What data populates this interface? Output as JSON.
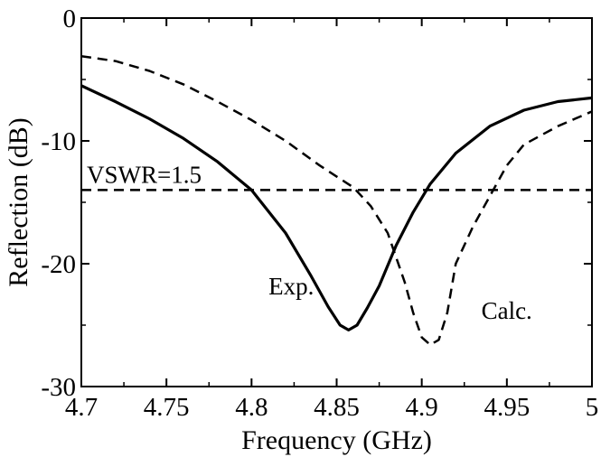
{
  "chart_data": {
    "type": "line",
    "title": "",
    "xlabel": "Frequency (GHz)",
    "ylabel": "Reflection (dB)",
    "xlim": [
      4.7,
      5.0
    ],
    "ylim": [
      -30,
      0
    ],
    "x_ticks": [
      "4.7",
      "4.75",
      "4.8",
      "4.85",
      "4.9",
      "4.95",
      "5"
    ],
    "y_ticks": [
      "0",
      "-10",
      "-20",
      "-30"
    ],
    "grid": false,
    "legend": "none",
    "series": [
      {
        "line": "solid",
        "x": [
          4.7,
          4.72,
          4.74,
          4.76,
          4.78,
          4.8,
          4.82,
          4.835,
          4.845,
          4.852,
          4.857,
          4.862,
          4.868,
          4.875,
          4.885,
          4.895,
          4.905,
          4.92,
          4.94,
          4.96,
          4.98,
          5.0
        ],
        "y": [
          -5.5,
          -6.8,
          -8.2,
          -9.8,
          -11.7,
          -14.0,
          -17.5,
          -21.0,
          -23.5,
          -25.0,
          -25.4,
          -25.0,
          -23.6,
          -21.8,
          -18.5,
          -15.8,
          -13.5,
          -11.0,
          -8.8,
          -7.5,
          -6.8,
          -6.5
        ]
      },
      {
        "line": "dashed",
        "x": [
          4.7,
          4.72,
          4.74,
          4.76,
          4.78,
          4.8,
          4.82,
          4.84,
          4.86,
          4.87,
          4.88,
          4.89,
          4.895,
          4.9,
          4.905,
          4.91,
          4.915,
          4.92,
          4.93,
          4.94,
          4.95,
          4.96,
          4.98,
          5.0
        ],
        "y": [
          -3.1,
          -3.5,
          -4.3,
          -5.4,
          -6.8,
          -8.3,
          -10.0,
          -12.0,
          -13.8,
          -15.3,
          -17.5,
          -21.5,
          -24.0,
          -26.0,
          -26.6,
          -26.2,
          -24.0,
          -20.0,
          -17.0,
          -14.5,
          -12.0,
          -10.3,
          -8.8,
          -7.6
        ]
      },
      {
        "line": "dashed",
        "x": [
          4.7,
          5.0
        ],
        "y": [
          -14,
          -14
        ]
      }
    ],
    "annotations": [
      {
        "text": "VSWR=1.5",
        "x": 4.7,
        "y": -14
      },
      {
        "text": "Exp.",
        "x": 4.81,
        "y": -22.5
      },
      {
        "text": "Calc.",
        "x": 4.935,
        "y": -24.5
      }
    ]
  }
}
